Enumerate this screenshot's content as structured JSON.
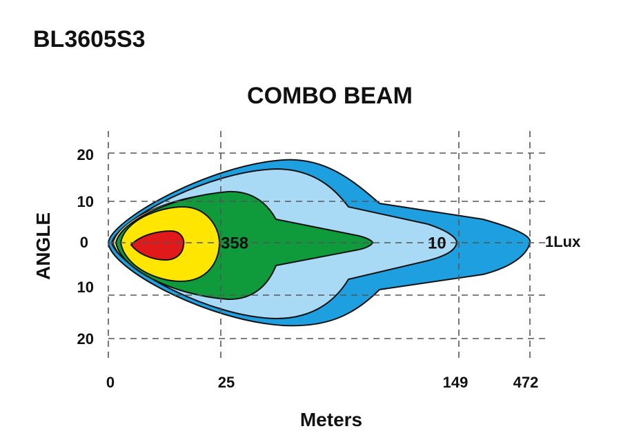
{
  "header": {
    "title": "BL3605S3",
    "subtitle": "COMBO BEAM"
  },
  "y_axis": {
    "label": "ANGLE",
    "ticks": [
      "20",
      "10",
      "0",
      "10",
      "20"
    ]
  },
  "x_axis": {
    "label": "Meters",
    "ticks": [
      "0",
      "25",
      "149",
      "472"
    ]
  },
  "annotations": [
    "358",
    "10",
    "1Lux"
  ]
}
